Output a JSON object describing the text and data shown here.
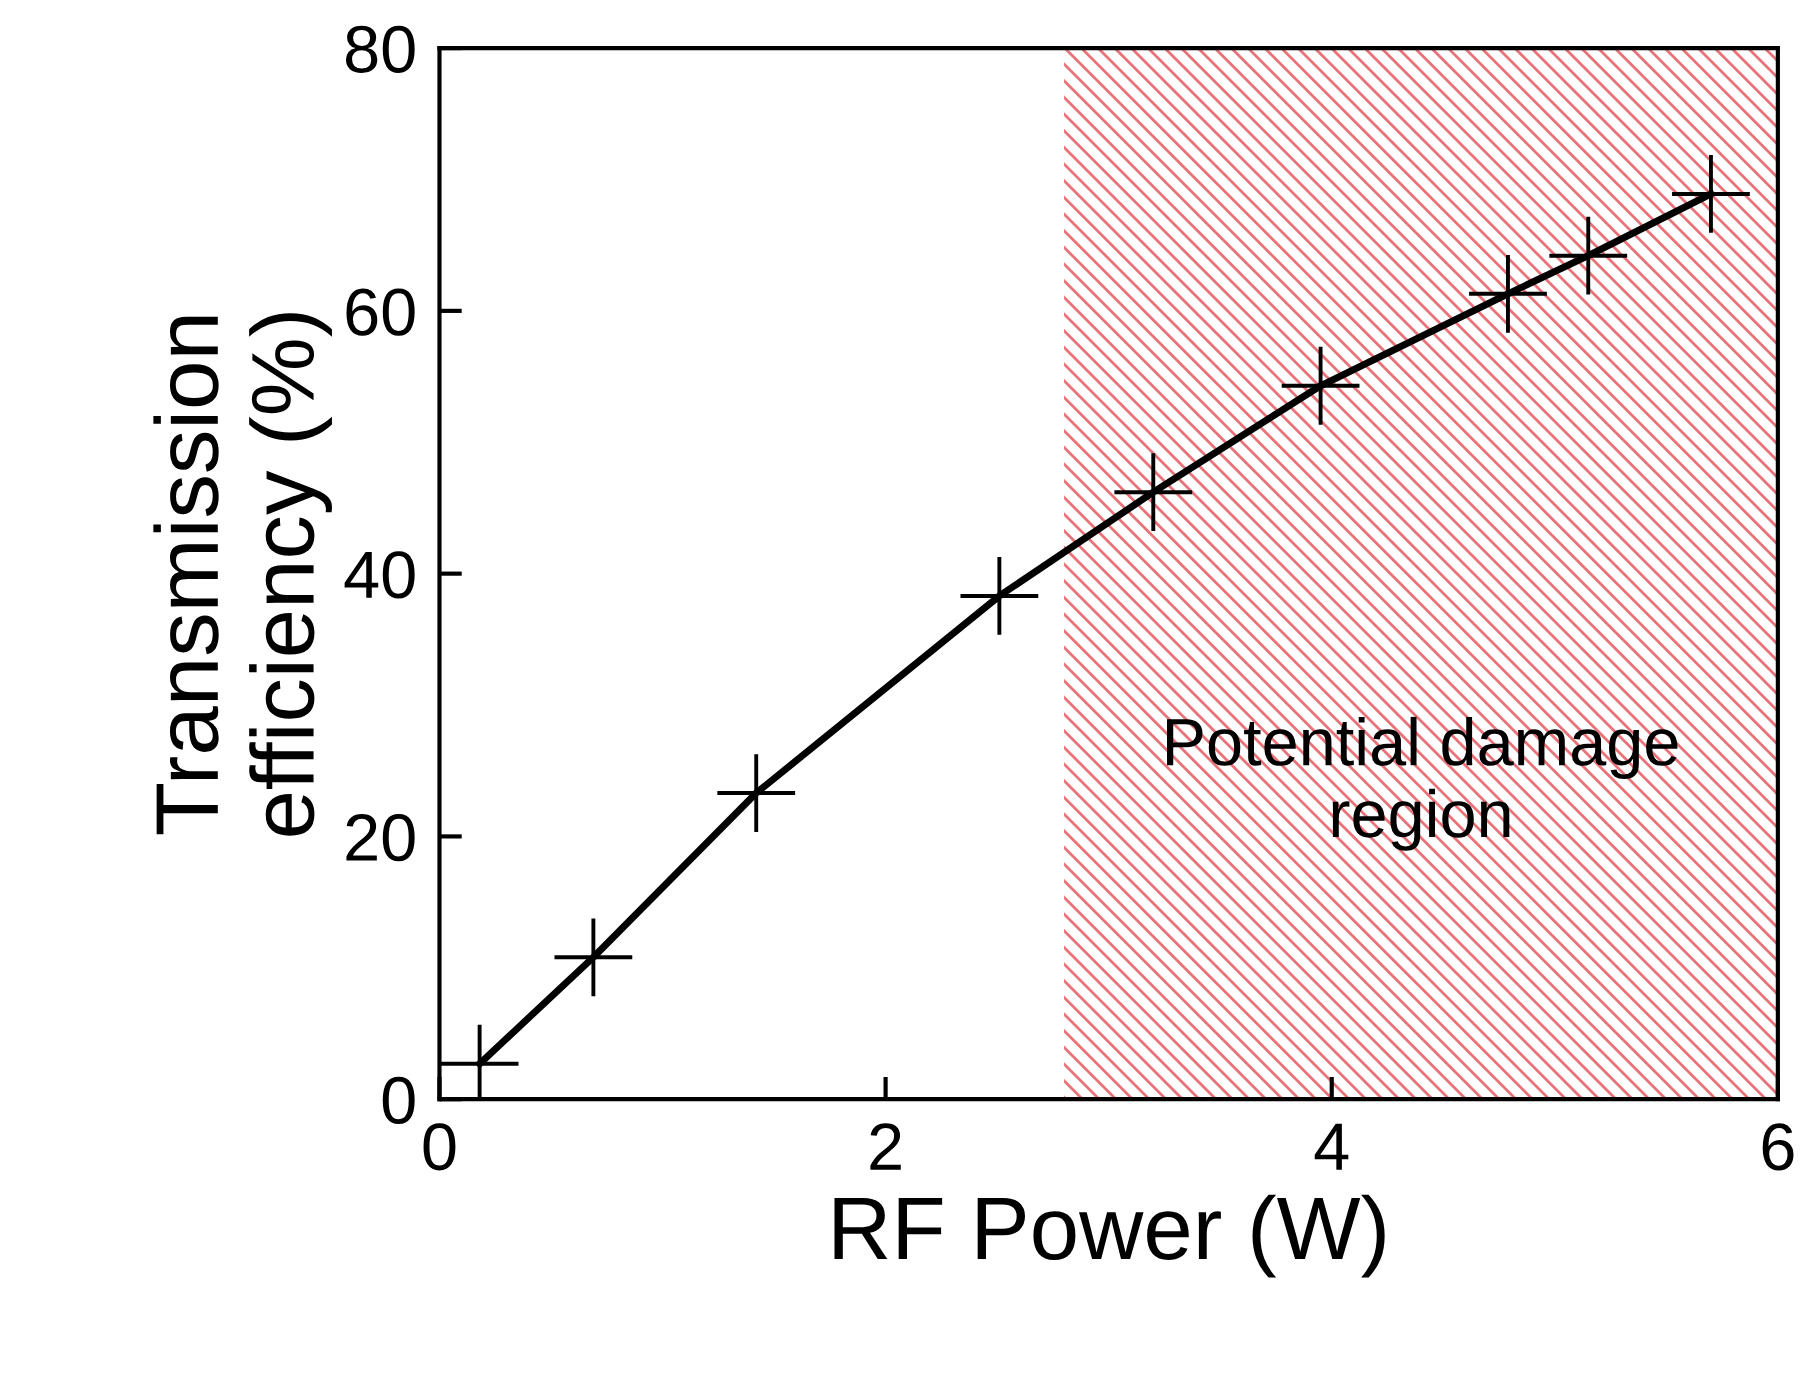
{
  "chart_data": {
    "type": "line",
    "xlabel": "RF Power (W)",
    "ylabel": "Transmission\nefficiency (%)",
    "x": [
      0.18,
      0.69,
      1.42,
      2.51,
      3.2,
      3.95,
      4.79,
      5.15,
      5.7
    ],
    "series": [
      {
        "color": "#000000",
        "values": [
          2.7,
          10.8,
          23.3,
          38.3,
          46.2,
          54.3,
          61.3,
          64.2,
          68.9
        ]
      }
    ],
    "marker": "cross",
    "line_style": "solid",
    "xlim": [
      0,
      6
    ],
    "ylim": [
      0,
      80
    ],
    "xticks": [
      0,
      2,
      4,
      6
    ],
    "yticks": [
      0,
      20,
      40,
      60,
      80
    ],
    "bands": [
      {
        "axis": "x",
        "from": 2.8,
        "to": 6,
        "label": "Potential damage\nregion",
        "color": "#e8737a"
      }
    ],
    "grid": false,
    "legend": false
  }
}
